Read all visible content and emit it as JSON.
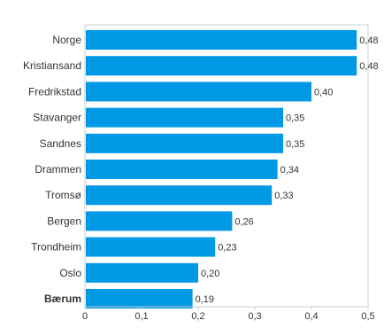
{
  "chart_data": {
    "type": "bar",
    "orientation": "horizontal",
    "categories": [
      "Norge",
      "Kristiansand",
      "Fredrikstad",
      "Stavanger",
      "Sandnes",
      "Drammen",
      "Tromsø",
      "Bergen",
      "Trondheim",
      "Oslo",
      "Bærum"
    ],
    "values": [
      0.48,
      0.48,
      0.4,
      0.35,
      0.35,
      0.34,
      0.33,
      0.26,
      0.23,
      0.2,
      0.19
    ],
    "value_labels": [
      "0,48",
      "0,48",
      "0,40",
      "0,35",
      "0,35",
      "0,34",
      "0,33",
      "0,26",
      "0,23",
      "0,20",
      "0,19"
    ],
    "highlighted_category": "Bærum",
    "x_ticks": [
      "0",
      "0,1",
      "0,2",
      "0,3",
      "0,4",
      "0,5"
    ],
    "x_tick_values": [
      0,
      0.1,
      0.2,
      0.3,
      0.4,
      0.5
    ],
    "xlim": [
      0,
      0.5
    ],
    "grid": false,
    "title": "",
    "xlabel": "",
    "ylabel": "",
    "bar_color": "#0099e5",
    "axis_color": "#cccccc",
    "label_color": "#333333"
  }
}
